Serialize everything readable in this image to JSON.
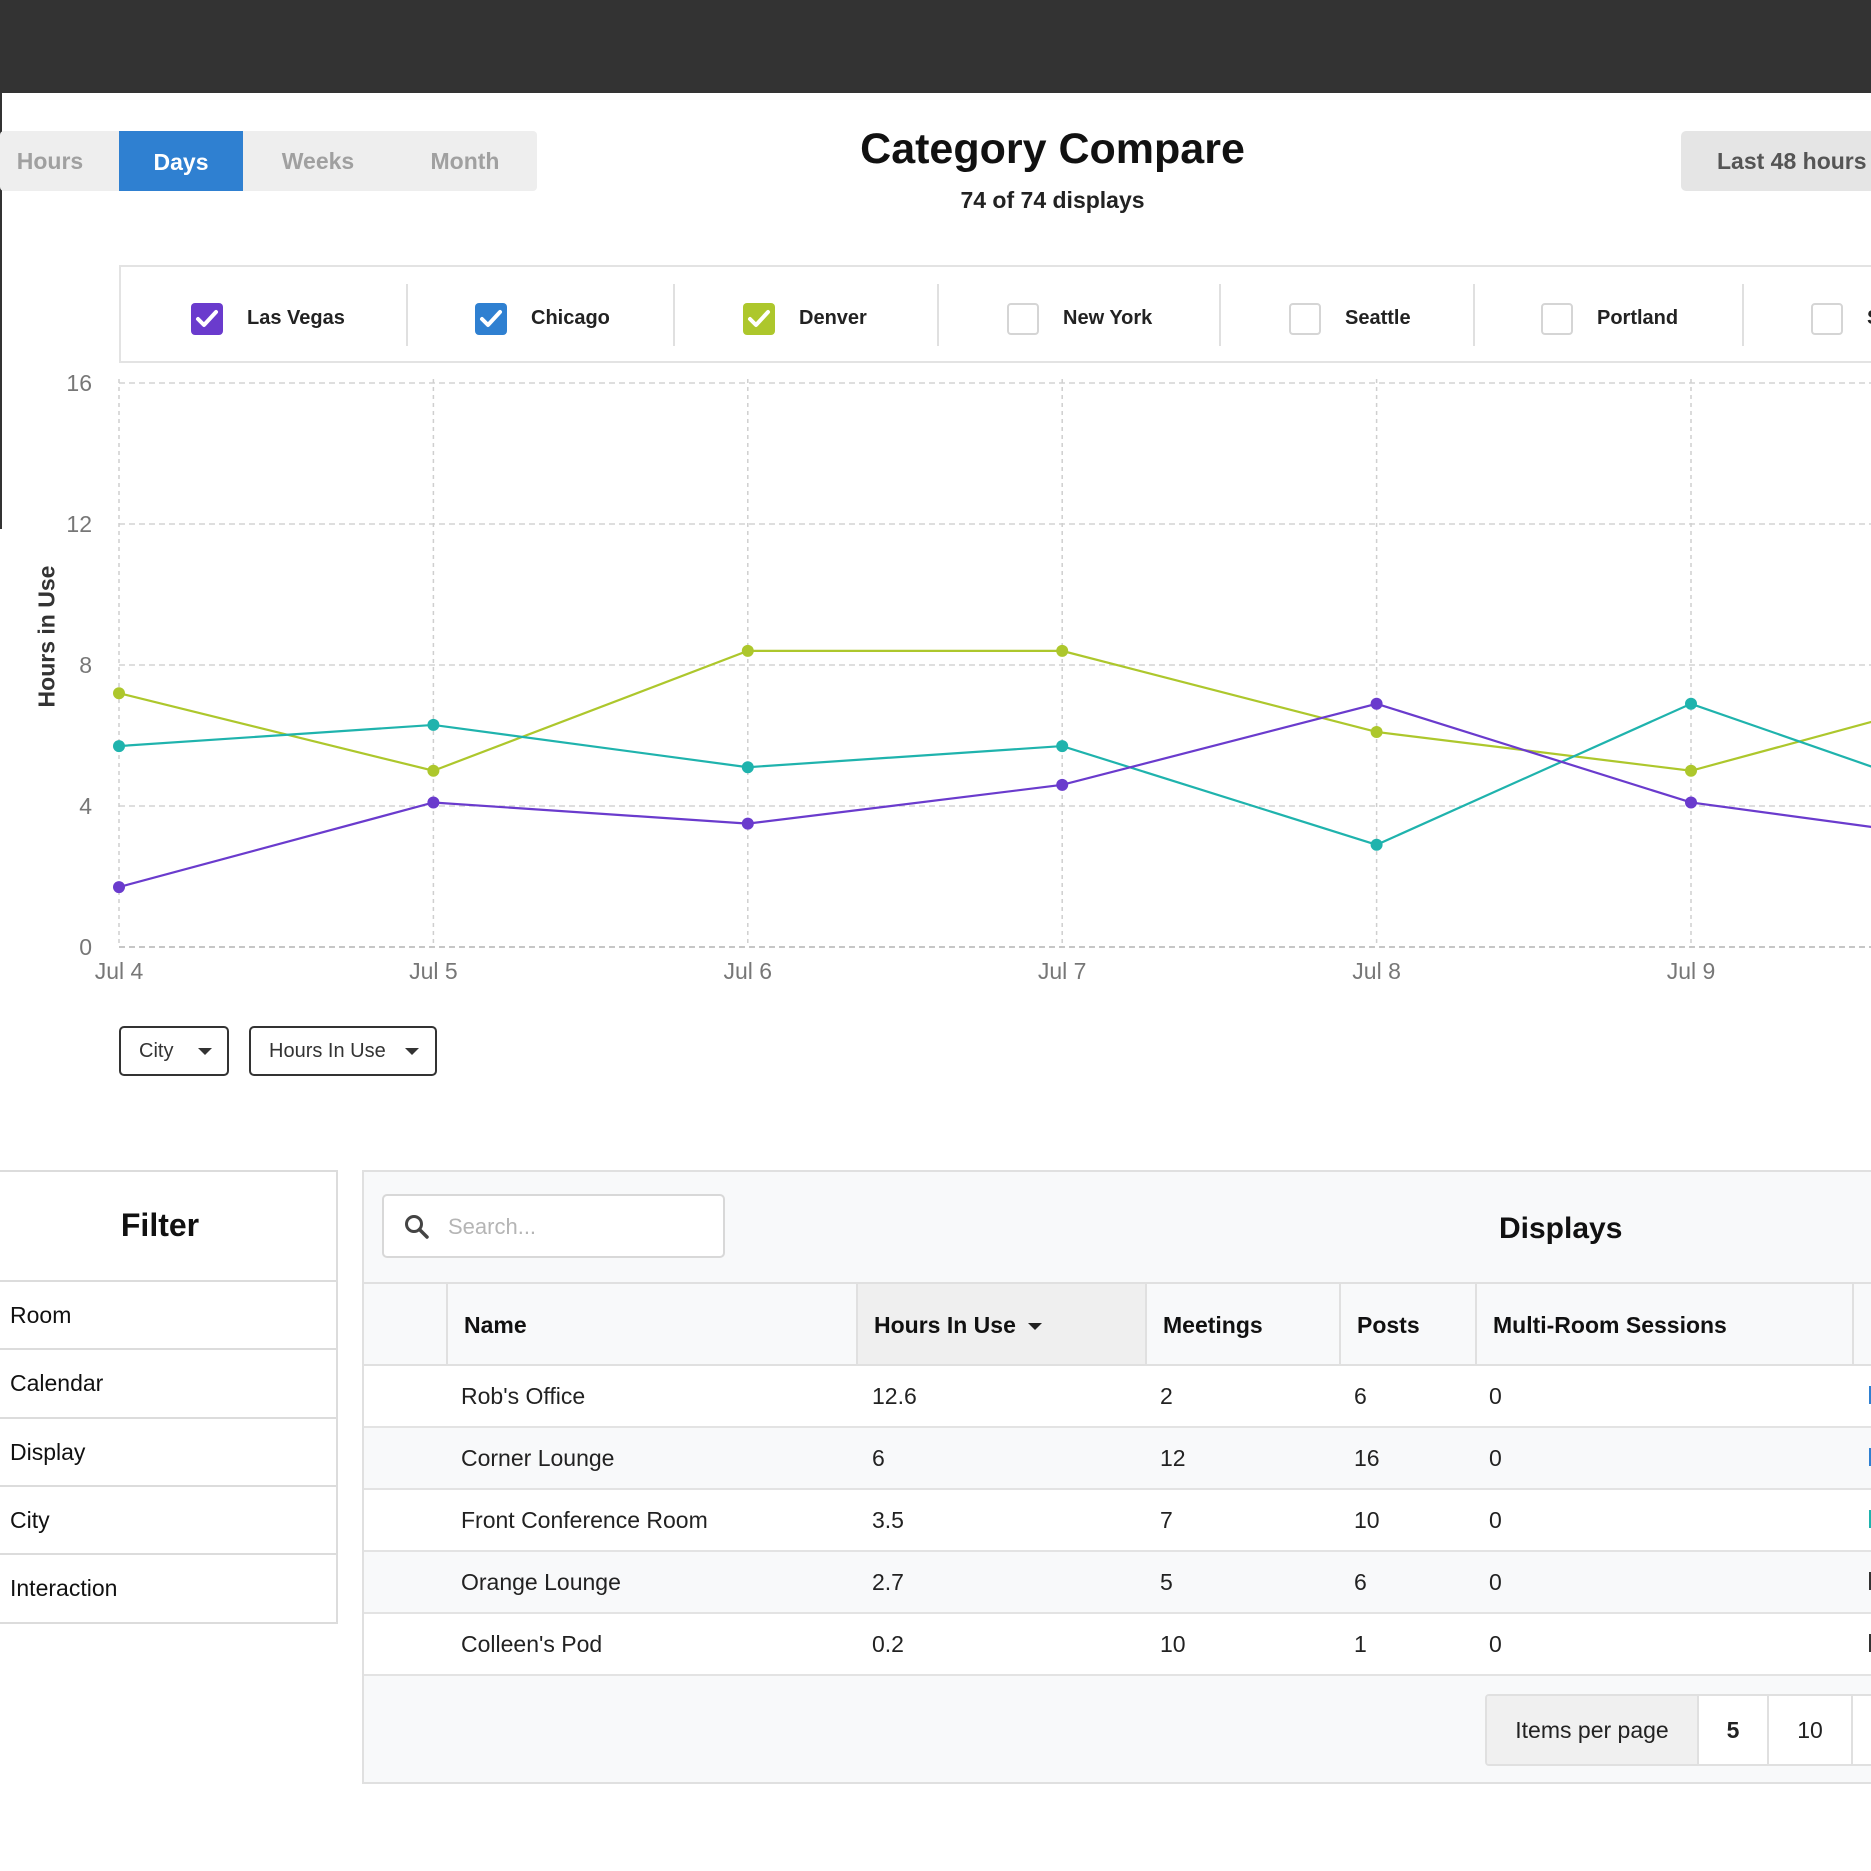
{
  "period_tabs": [
    {
      "label": "Hours",
      "active": false
    },
    {
      "label": "Days",
      "active": true
    },
    {
      "label": "Weeks",
      "active": false
    },
    {
      "label": "Month",
      "active": false
    }
  ],
  "header": {
    "title": "Category Compare",
    "subtitle": "74 of 74 displays",
    "range_button": "Last 48 hours"
  },
  "legend": [
    {
      "label": "Las Vegas",
      "checked": true,
      "color": "#6a3bcd"
    },
    {
      "label": "Chicago",
      "checked": true,
      "color": "#2f80d1"
    },
    {
      "label": "Denver",
      "checked": true,
      "color": "#adc72c"
    },
    {
      "label": "New York",
      "checked": false
    },
    {
      "label": "Seattle",
      "checked": false
    },
    {
      "label": "Portland",
      "checked": false
    },
    {
      "label": "S",
      "checked": false
    }
  ],
  "chart_data": {
    "type": "line",
    "ylabel": "Hours in Use",
    "ylim": [
      0,
      16
    ],
    "yticks": [
      0,
      4,
      8,
      12,
      16
    ],
    "grid": true,
    "categories": [
      "Jul 4",
      "Jul 5",
      "Jul 6",
      "Jul 7",
      "Jul 8",
      "Jul 9"
    ],
    "series": [
      {
        "name": "Denver",
        "color": "#adc72c",
        "values": [
          7.2,
          5.0,
          8.4,
          8.4,
          6.1,
          5.0
        ],
        "trailing_value": 6.4
      },
      {
        "name": "Chicago",
        "color": "#1fb3ad",
        "values": [
          5.7,
          6.3,
          5.1,
          5.7,
          2.9,
          6.9
        ],
        "trailing_value": 5.1
      },
      {
        "name": "Las Vegas",
        "color": "#6a3bcd",
        "values": [
          1.7,
          4.1,
          3.5,
          4.6,
          6.9,
          4.1
        ],
        "trailing_value": 3.4
      }
    ]
  },
  "dropdowns": {
    "group_by": "City",
    "metric": "Hours In Use"
  },
  "filter": {
    "title": "Filter",
    "items": [
      "Room",
      "Calendar",
      "Display",
      "City",
      "Interaction"
    ]
  },
  "displays": {
    "title": "Displays",
    "search_placeholder": "Search...",
    "columns": [
      "Name",
      "Hours In Use",
      "Meetings",
      "Posts",
      "Multi-Room Sessions"
    ],
    "sorted_column": "Hours In Use",
    "rows": [
      {
        "name": "Rob's Office",
        "hours": "12.6",
        "meetings": "2",
        "posts": "6",
        "multi": "0",
        "mark": "#2f80d1"
      },
      {
        "name": "Corner Lounge",
        "hours": "6",
        "meetings": "12",
        "posts": "16",
        "multi": "0",
        "mark": "#2f80d1"
      },
      {
        "name": "Front Conference Room",
        "hours": "3.5",
        "meetings": "7",
        "posts": "10",
        "multi": "0",
        "mark": "#1fb3ad"
      },
      {
        "name": "Orange Lounge",
        "hours": "2.7",
        "meetings": "5",
        "posts": "6",
        "multi": "0",
        "mark": "#333333"
      },
      {
        "name": "Colleen's Pod",
        "hours": "0.2",
        "meetings": "10",
        "posts": "1",
        "multi": "0",
        "mark": "#333333"
      }
    ],
    "pager": {
      "label": "Items per page",
      "options": [
        "5",
        "10"
      ],
      "selected": "5"
    }
  }
}
